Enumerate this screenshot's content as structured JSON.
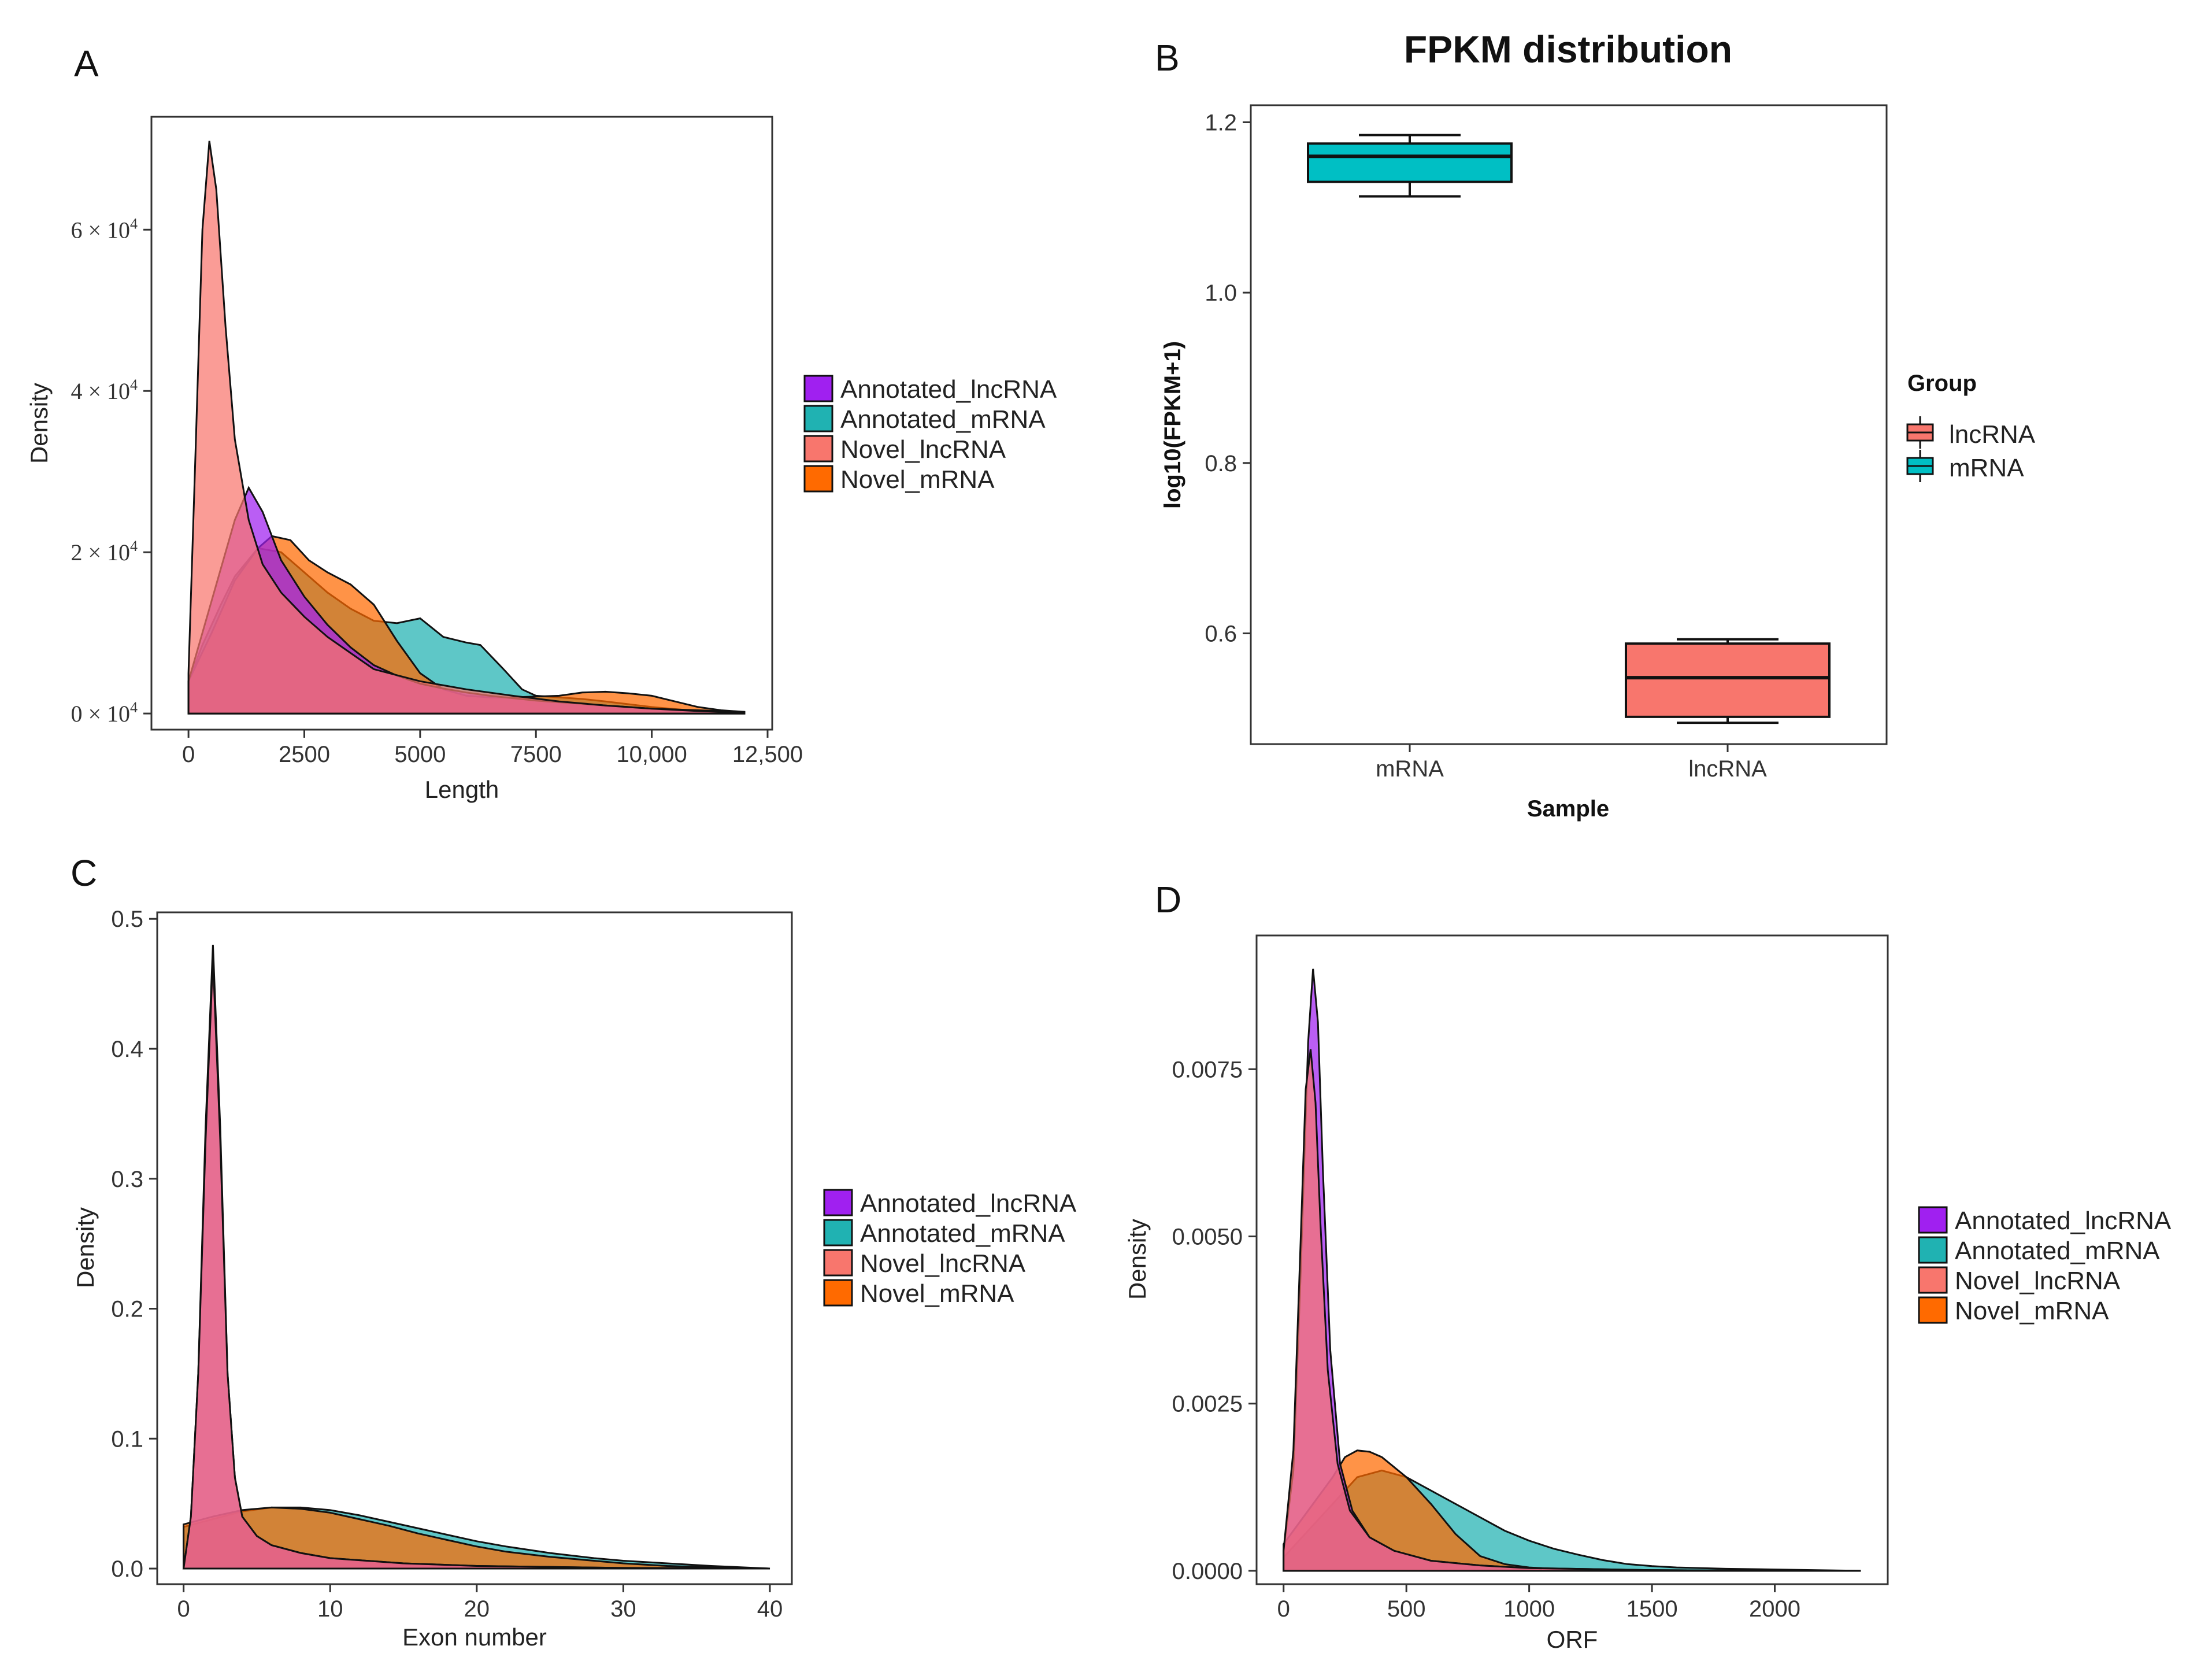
{
  "colors": {
    "Annotated_lncRNA": "#A020F0",
    "Annotated_mRNA": "#20B2B2",
    "Novel_lncRNA": "#F8766D",
    "Novel_mRNA": "#FF6A00",
    "box_lncRNA": "#F8766D",
    "box_mRNA": "#00BFC4"
  },
  "chart_data": [
    {
      "id": "A",
      "panel_label": "A",
      "type": "area",
      "title": "",
      "xlabel": "Length",
      "ylabel": "Density",
      "xlim": [
        -800,
        12600
      ],
      "ylim": [
        -2000,
        74000
      ],
      "xticks": [
        0,
        2500,
        5000,
        7500,
        10000,
        12500
      ],
      "xtick_labels": [
        "0",
        "2500",
        "5000",
        "7500",
        "10,000",
        "12,500"
      ],
      "yticks": [
        0,
        20000,
        40000,
        60000
      ],
      "ytick_labels": [
        "0",
        "2",
        "4",
        "6"
      ],
      "ytick_suffix": " × 10",
      "ytick_exp": "4",
      "legend": [
        "Annotated_lncRNA",
        "Annotated_mRNA",
        "Novel_lncRNA",
        "Novel_mRNA"
      ],
      "series": [
        {
          "name": "Annotated_lncRNA",
          "x": [
            0,
            300,
            700,
            1000,
            1300,
            1600,
            2000,
            2500,
            3000,
            3500,
            4000,
            4500,
            5000,
            5500,
            6000,
            6500,
            7000,
            7500,
            8000,
            8500,
            9000,
            9500,
            10000,
            10500,
            11000,
            11500,
            12000
          ],
          "y": [
            4000,
            10000,
            18000,
            24000,
            28000,
            25000,
            19000,
            14500,
            11000,
            8200,
            6000,
            4700,
            3700,
            3100,
            2600,
            2200,
            1900,
            1600,
            1400,
            1200,
            1000,
            800,
            600,
            500,
            400,
            300,
            200
          ]
        },
        {
          "name": "Annotated_mRNA",
          "x": [
            0,
            300,
            700,
            1000,
            1500,
            2000,
            2500,
            3000,
            3500,
            4000,
            4500,
            5000,
            5500,
            6000,
            6300,
            6800,
            7200,
            7500,
            8000,
            8500,
            9000,
            10000,
            11000,
            12000
          ],
          "y": [
            4000,
            8500,
            13500,
            17000,
            20500,
            20000,
            17500,
            15000,
            13000,
            11500,
            11200,
            11800,
            9500,
            8800,
            8500,
            5500,
            3000,
            2200,
            2000,
            1800,
            1500,
            800,
            300,
            100
          ]
        },
        {
          "name": "Novel_lncRNA",
          "x": [
            0,
            150,
            300,
            450,
            600,
            800,
            1000,
            1300,
            1600,
            2000,
            2500,
            3000,
            3500,
            4000,
            5000,
            6000,
            7000,
            8000,
            9000,
            10000,
            11000,
            12000
          ],
          "y": [
            5000,
            32000,
            60000,
            71000,
            65000,
            48000,
            34000,
            24000,
            18500,
            15000,
            12000,
            9500,
            7500,
            5500,
            4000,
            3000,
            2200,
            1500,
            1000,
            600,
            300,
            100
          ]
        },
        {
          "name": "Novel_mRNA",
          "x": [
            0,
            500,
            1000,
            1500,
            1800,
            2200,
            2600,
            3000,
            3500,
            4000,
            4500,
            5000,
            5500,
            6000,
            6500,
            7000,
            7500,
            8000,
            8500,
            9000,
            9500,
            10000,
            10500,
            11000,
            11500,
            12000
          ],
          "y": [
            4000,
            10000,
            16500,
            20500,
            22000,
            21500,
            19000,
            17500,
            16000,
            13500,
            9000,
            5000,
            3000,
            2200,
            2000,
            2000,
            2100,
            2200,
            2600,
            2700,
            2500,
            2200,
            1500,
            800,
            400,
            200
          ]
        }
      ]
    },
    {
      "id": "B",
      "panel_label": "B",
      "type": "box",
      "title": "FPKM distribution",
      "xlabel": "Sample",
      "ylabel": "log10(FPKM+1)",
      "ylim": [
        0.47,
        1.22
      ],
      "yticks": [
        0.6,
        0.8,
        1.0,
        1.2
      ],
      "ytick_labels": [
        "0.6",
        "0.8",
        "1.0",
        "1.2"
      ],
      "categories": [
        "mRNA",
        "lncRNA"
      ],
      "boxes": [
        {
          "category": "mRNA",
          "group": "mRNA",
          "min": 1.113,
          "q1": 1.13,
          "median": 1.16,
          "q3": 1.175,
          "max": 1.185
        },
        {
          "category": "lncRNA",
          "group": "lncRNA",
          "min": 0.495,
          "q1": 0.502,
          "median": 0.548,
          "q3": 0.588,
          "max": 0.593
        }
      ],
      "legend_title": "Group",
      "legend": [
        "lncRNA",
        "mRNA"
      ]
    },
    {
      "id": "C",
      "panel_label": "C",
      "type": "area",
      "title": "",
      "xlabel": "Exon number",
      "ylabel": "Density",
      "xlim": [
        -1.8,
        41.5
      ],
      "ylim": [
        -0.012,
        0.505
      ],
      "xticks": [
        0,
        10,
        20,
        30,
        40
      ],
      "xtick_labels": [
        "0",
        "10",
        "20",
        "30",
        "40"
      ],
      "yticks": [
        0.0,
        0.1,
        0.2,
        0.3,
        0.4,
        0.5
      ],
      "ytick_labels": [
        "0.0",
        "0.1",
        "0.2",
        "0.3",
        "0.4",
        "0.5"
      ],
      "legend": [
        "Annotated_lncRNA",
        "Annotated_mRNA",
        "Novel_lncRNA",
        "Novel_mRNA"
      ],
      "series": [
        {
          "name": "Annotated_lncRNA",
          "x": [
            0,
            0.5,
            1.0,
            1.5,
            2.0,
            2.5,
            3.0,
            3.5,
            4.0,
            5,
            6,
            8,
            10,
            15,
            20,
            30,
            40
          ],
          "y": [
            0.0,
            0.04,
            0.15,
            0.34,
            0.48,
            0.34,
            0.15,
            0.07,
            0.04,
            0.025,
            0.018,
            0.012,
            0.008,
            0.004,
            0.002,
            0.0005,
            0.0
          ]
        },
        {
          "name": "Annotated_mRNA",
          "x": [
            0,
            2,
            4,
            6,
            8,
            10,
            12,
            14,
            16,
            18,
            20,
            22,
            25,
            28,
            30,
            33,
            36,
            40
          ],
          "y": [
            0.032,
            0.038,
            0.044,
            0.047,
            0.047,
            0.045,
            0.041,
            0.036,
            0.031,
            0.026,
            0.021,
            0.017,
            0.012,
            0.008,
            0.006,
            0.004,
            0.002,
            0.0
          ]
        },
        {
          "name": "Novel_lncRNA",
          "x": [
            0,
            0.5,
            1.0,
            1.5,
            2.0,
            2.5,
            3.0,
            3.5,
            4.0,
            5,
            6,
            8,
            10,
            15,
            20,
            30,
            40
          ],
          "y": [
            0.0,
            0.04,
            0.15,
            0.33,
            0.47,
            0.33,
            0.15,
            0.07,
            0.04,
            0.025,
            0.018,
            0.012,
            0.008,
            0.004,
            0.002,
            0.0005,
            0.0
          ]
        },
        {
          "name": "Novel_mRNA",
          "x": [
            0,
            2,
            4,
            6,
            8,
            10,
            12,
            14,
            16,
            18,
            20,
            22,
            25,
            28,
            30,
            33,
            36,
            40
          ],
          "y": [
            0.034,
            0.04,
            0.045,
            0.047,
            0.046,
            0.043,
            0.038,
            0.033,
            0.027,
            0.022,
            0.017,
            0.013,
            0.009,
            0.006,
            0.004,
            0.002,
            0.001,
            0.0
          ]
        }
      ]
    },
    {
      "id": "D",
      "panel_label": "D",
      "type": "area",
      "title": "",
      "xlabel": "ORF",
      "ylabel": "Density",
      "xlim": [
        -110,
        2460
      ],
      "ylim": [
        -0.0002,
        0.0095
      ],
      "xticks": [
        0,
        500,
        1000,
        1500,
        2000
      ],
      "xtick_labels": [
        "0",
        "500",
        "1000",
        "1500",
        "2000"
      ],
      "yticks": [
        0.0,
        0.0025,
        0.005,
        0.0075
      ],
      "ytick_labels": [
        "0.0000",
        "0.0025",
        "0.0050",
        "0.0075"
      ],
      "legend": [
        "Annotated_lncRNA",
        "Annotated_mRNA",
        "Novel_lncRNA",
        "Novel_mRNA"
      ],
      "series": [
        {
          "name": "Annotated_lncRNA",
          "x": [
            0,
            40,
            70,
            100,
            120,
            140,
            160,
            190,
            230,
            280,
            350,
            450,
            600,
            800,
            1000,
            1500,
            2000,
            2350
          ],
          "y": [
            0.0003,
            0.0015,
            0.0045,
            0.0079,
            0.009,
            0.0082,
            0.006,
            0.0033,
            0.0016,
            0.0009,
            0.0005,
            0.0003,
            0.00015,
            8e-05,
            4e-05,
            1e-05,
            0.0,
            0.0
          ]
        },
        {
          "name": "Annotated_mRNA",
          "x": [
            0,
            100,
            200,
            300,
            400,
            500,
            600,
            700,
            800,
            900,
            1000,
            1100,
            1200,
            1300,
            1400,
            1500,
            1600,
            1800,
            2000,
            2350
          ],
          "y": [
            0.0002,
            0.0006,
            0.001,
            0.0014,
            0.0015,
            0.0014,
            0.0012,
            0.001,
            0.0008,
            0.0006,
            0.00045,
            0.00033,
            0.00024,
            0.00016,
            0.0001,
            7e-05,
            5e-05,
            3e-05,
            2e-05,
            0.0
          ]
        },
        {
          "name": "Novel_lncRNA",
          "x": [
            0,
            40,
            70,
            90,
            110,
            130,
            150,
            180,
            220,
            270,
            350,
            450,
            600,
            800,
            1000,
            1500,
            2000,
            2350
          ],
          "y": [
            0.0003,
            0.0018,
            0.005,
            0.0072,
            0.0078,
            0.007,
            0.0052,
            0.003,
            0.0016,
            0.0009,
            0.0005,
            0.0003,
            0.00015,
            8e-05,
            4e-05,
            1e-05,
            0.0,
            0.0
          ]
        },
        {
          "name": "Novel_mRNA",
          "x": [
            0,
            100,
            200,
            250,
            300,
            350,
            400,
            500,
            600,
            700,
            800,
            900,
            1000,
            1100,
            1200,
            1500,
            2000,
            2350
          ],
          "y": [
            0.0004,
            0.0009,
            0.0014,
            0.0017,
            0.0018,
            0.00178,
            0.0017,
            0.0014,
            0.001,
            0.00055,
            0.00022,
            0.0001,
            5e-05,
            3e-05,
            2e-05,
            1e-05,
            0.0,
            0.0
          ]
        }
      ]
    }
  ]
}
